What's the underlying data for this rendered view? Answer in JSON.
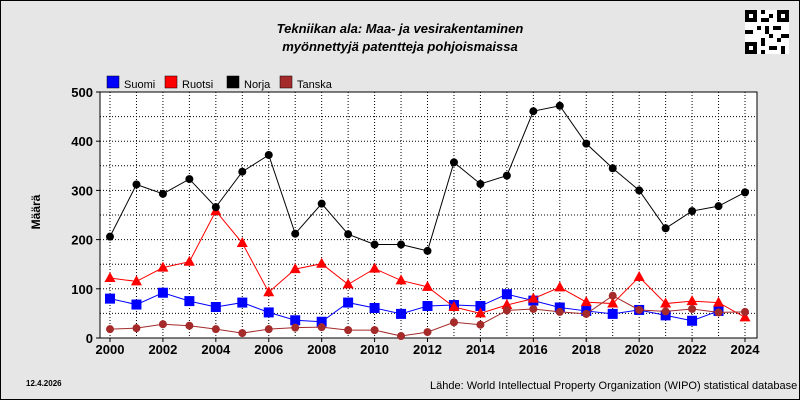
{
  "header": {
    "title_line1": "Tekniikan ala: Maa- ja vesirakentaminen",
    "title_line2": "myönnettyjä patentteja pohjoismaissa"
  },
  "footer": {
    "date": "12.4.2026",
    "source": "Lähde: World Intellectual Property Organization (WIPO) statistical database"
  },
  "chart_data": {
    "type": "line",
    "xlim": [
      2000,
      2024
    ],
    "ylim": [
      0,
      500
    ],
    "x_ticks": [
      2000,
      2002,
      2004,
      2006,
      2008,
      2010,
      2012,
      2014,
      2016,
      2018,
      2020,
      2022,
      2024
    ],
    "y_ticks": [
      0,
      100,
      200,
      300,
      400,
      500
    ],
    "ylabel": "Määrä",
    "grid": true,
    "legend_position": "top-left",
    "x": [
      2000,
      2001,
      2002,
      2003,
      2004,
      2005,
      2006,
      2007,
      2008,
      2009,
      2010,
      2011,
      2012,
      2013,
      2014,
      2015,
      2016,
      2017,
      2018,
      2019,
      2020,
      2021,
      2022,
      2023,
      2024
    ],
    "series": [
      {
        "name": "Suomi",
        "color": "#0000ff",
        "marker": "square",
        "values": [
          80,
          68,
          92,
          75,
          63,
          72,
          52,
          36,
          33,
          72,
          61,
          49,
          65,
          67,
          65,
          89,
          76,
          62,
          55,
          49,
          57,
          46,
          35,
          55,
          null
        ]
      },
      {
        "name": "Ruotsi",
        "color": "#ff0000",
        "marker": "triangle",
        "values": [
          122,
          115,
          143,
          155,
          258,
          193,
          93,
          140,
          151,
          109,
          141,
          117,
          104,
          63,
          50,
          67,
          80,
          103,
          73,
          70,
          124,
          70,
          75,
          72,
          42
        ]
      },
      {
        "name": "Norja",
        "color": "#000000",
        "marker": "circle",
        "values": [
          206,
          312,
          293,
          323,
          266,
          338,
          372,
          212,
          273,
          211,
          190,
          190,
          177,
          357,
          313,
          330,
          461,
          472,
          395,
          345,
          300,
          223,
          258,
          268,
          296
        ]
      },
      {
        "name": "Tanska",
        "color": "#a52a2a",
        "marker": "circle",
        "values": [
          18,
          20,
          28,
          25,
          18,
          10,
          18,
          21,
          22,
          16,
          16,
          4,
          12,
          32,
          27,
          56,
          59,
          53,
          49,
          86,
          57,
          54,
          59,
          52,
          53
        ]
      }
    ]
  }
}
